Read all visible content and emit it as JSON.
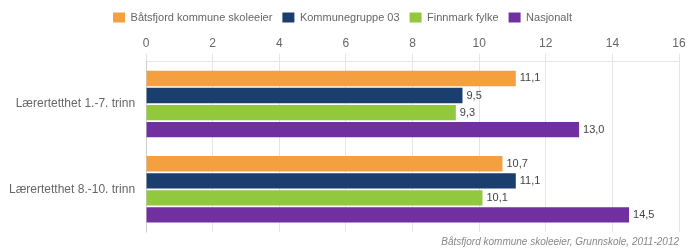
{
  "chart_data": {
    "type": "bar",
    "orientation": "horizontal",
    "subtitle": "Båtsfjord kommune skoleeier, Grunnskole, 2011-2012",
    "categories": [
      "Lærertetthet 1.-7. trinn",
      "Lærertetthet 8.-10. trinn"
    ],
    "series": [
      {
        "name": "Båtsfjord kommune skoleeier",
        "color": "#f4a040",
        "values": [
          11.1,
          10.7
        ],
        "value_labels": [
          "11,1",
          "10,7"
        ]
      },
      {
        "name": "Kommunegruppe 03",
        "color": "#1a3f6f",
        "values": [
          9.5,
          11.1
        ],
        "value_labels": [
          "9,5",
          "11,1"
        ]
      },
      {
        "name": "Finnmark fylke",
        "color": "#92c83e",
        "values": [
          9.3,
          10.1
        ],
        "value_labels": [
          "9,3",
          "10,1"
        ]
      },
      {
        "name": "Nasjonalt",
        "color": "#7030a0",
        "values": [
          13.0,
          14.5
        ],
        "value_labels": [
          "13,0",
          "14,5"
        ]
      }
    ],
    "xlim": [
      0,
      16
    ],
    "xticks": [
      0,
      2,
      4,
      6,
      8,
      10,
      12,
      14,
      16
    ],
    "grid": true,
    "legend": "top",
    "data_labels": true
  }
}
